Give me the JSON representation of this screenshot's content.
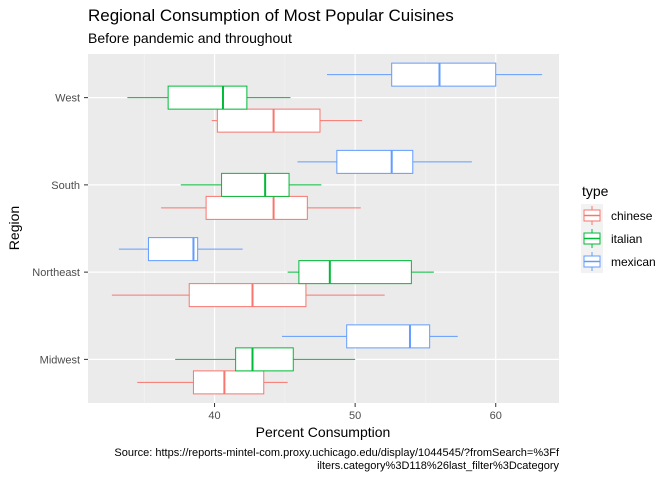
{
  "chart_data": {
    "type": "boxplot",
    "orientation": "horizontal",
    "title": "Regional Consumption of Most Popular Cuisines",
    "subtitle": "Before pandemic and throughout",
    "xlabel": "Percent Consumption",
    "ylabel": "Region",
    "xlim": [
      31,
      64.5
    ],
    "xticks": [
      40,
      50,
      60
    ],
    "categories": [
      "Midwest",
      "Northeast",
      "South",
      "West"
    ],
    "grid": true,
    "legend": {
      "title": "type",
      "position": "right"
    },
    "series": [
      {
        "name": "chinese",
        "color": "#F8766D",
        "boxes": [
          {
            "category": "Midwest",
            "whisker_low": 34.5,
            "q1": 38.5,
            "median": 40.7,
            "q3": 43.5,
            "whisker_high": 45.2
          },
          {
            "category": "Northeast",
            "whisker_low": 32.7,
            "q1": 38.2,
            "median": 42.7,
            "q3": 46.5,
            "whisker_high": 52.1
          },
          {
            "category": "South",
            "whisker_low": 36.2,
            "q1": 39.4,
            "median": 44.2,
            "q3": 46.6,
            "whisker_high": 50.4
          },
          {
            "category": "West",
            "whisker_low": 39.8,
            "q1": 40.2,
            "median": 44.2,
            "q3": 47.5,
            "whisker_high": 50.5
          }
        ]
      },
      {
        "name": "italian",
        "color": "#00BA38",
        "boxes": [
          {
            "category": "Midwest",
            "whisker_low": 37.2,
            "q1": 41.5,
            "median": 42.7,
            "q3": 45.6,
            "whisker_high": 50.0
          },
          {
            "category": "Northeast",
            "whisker_low": 45.2,
            "q1": 46.0,
            "median": 48.2,
            "q3": 54.0,
            "whisker_high": 55.6
          },
          {
            "category": "South",
            "whisker_low": 37.6,
            "q1": 40.5,
            "median": 43.6,
            "q3": 45.3,
            "whisker_high": 47.6
          },
          {
            "category": "West",
            "whisker_low": 33.8,
            "q1": 36.7,
            "median": 40.6,
            "q3": 42.3,
            "whisker_high": 45.4
          }
        ]
      },
      {
        "name": "mexican",
        "color": "#619CFF",
        "boxes": [
          {
            "category": "Midwest",
            "whisker_low": 44.8,
            "q1": 49.4,
            "median": 53.9,
            "q3": 55.3,
            "whisker_high": 57.3
          },
          {
            "category": "Northeast",
            "whisker_low": 33.2,
            "q1": 35.3,
            "median": 38.5,
            "q3": 38.8,
            "whisker_high": 42.0
          },
          {
            "category": "South",
            "whisker_low": 45.9,
            "q1": 48.7,
            "median": 52.6,
            "q3": 54.1,
            "whisker_high": 58.3
          },
          {
            "category": "West",
            "whisker_low": 48.0,
            "q1": 52.6,
            "median": 56.0,
            "q3": 60.0,
            "whisker_high": 63.3
          }
        ]
      }
    ],
    "caption_lines": [
      "Source: https://reports-mintel-com.proxy.uchicago.edu/display/1044545/?fromSearch=%3Ff",
      "ilters.category%3D118%26last_filter%3Dcategory"
    ]
  }
}
